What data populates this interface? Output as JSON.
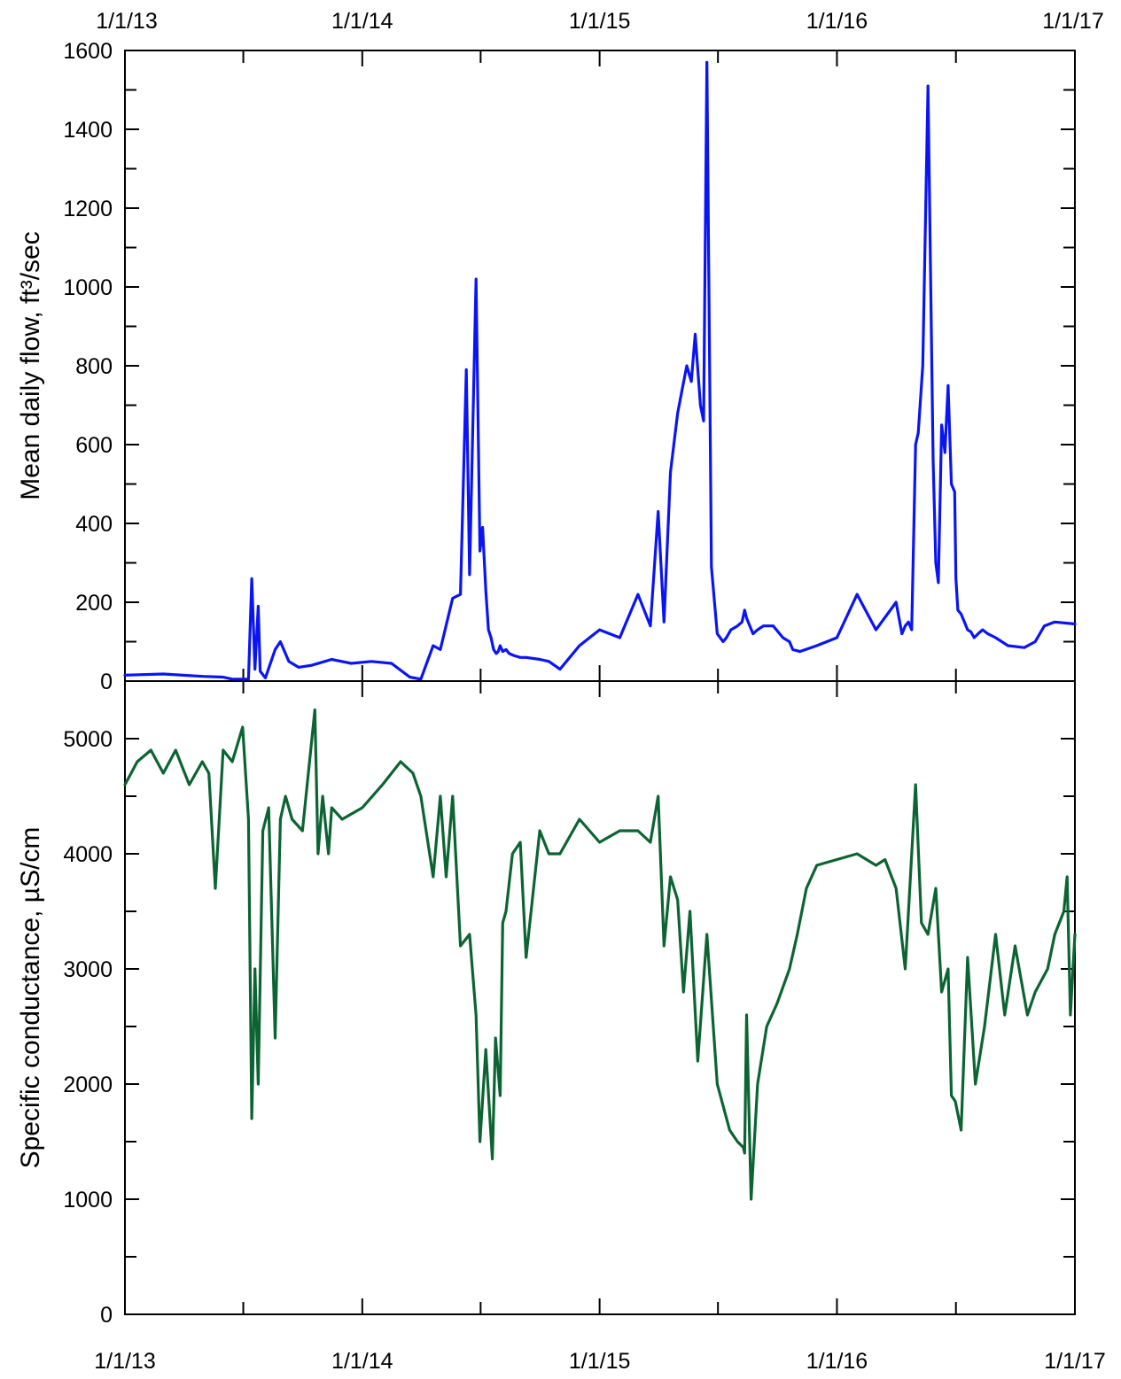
{
  "chart_data": [
    {
      "type": "line",
      "title": "",
      "xlabel": "",
      "ylabel": "Mean daily flow, ft³/sec",
      "ylim": [
        0,
        1600
      ],
      "y_ticks": [
        "0",
        "200",
        "400",
        "600",
        "800",
        "1000",
        "1200",
        "1400",
        "1600"
      ],
      "x_ticks_top": [
        "1/1/13",
        "1/1/14",
        "1/1/15",
        "1/1/16",
        "1/1/17"
      ],
      "xlim": [
        "2013-01-01",
        "2017-01-01"
      ],
      "grid": false,
      "color": "#0a14f5",
      "x": [
        "2013-01-01",
        "2013-03-01",
        "2013-05-01",
        "2013-06-01",
        "2013-06-15",
        "2013-07-10",
        "2013-07-15",
        "2013-07-20",
        "2013-07-25",
        "2013-07-28",
        "2013-08-05",
        "2013-08-20",
        "2013-08-28",
        "2013-09-10",
        "2013-09-15",
        "2013-09-25",
        "2013-10-15",
        "2013-11-15",
        "2013-12-15",
        "2014-01-15",
        "2014-02-15",
        "2014-03-15",
        "2014-04-01",
        "2014-04-20",
        "2014-05-01",
        "2014-05-20",
        "2014-06-01",
        "2014-06-10",
        "2014-06-15",
        "2014-06-25",
        "2014-07-01",
        "2014-07-05",
        "2014-07-10",
        "2014-07-14",
        "2014-07-18",
        "2014-07-22",
        "2014-07-26",
        "2014-07-29",
        "2014-08-01",
        "2014-08-05",
        "2014-08-10",
        "2014-08-15",
        "2014-08-22",
        "2014-09-01",
        "2014-09-10",
        "2014-10-01",
        "2014-10-15",
        "2014-11-01",
        "2014-12-01",
        "2015-01-01",
        "2015-02-01",
        "2015-03-01",
        "2015-03-20",
        "2015-04-01",
        "2015-04-10",
        "2015-04-20",
        "2015-05-01",
        "2015-05-08",
        "2015-05-15",
        "2015-05-22",
        "2015-05-28",
        "2015-06-05",
        "2015-06-10",
        "2015-06-15",
        "2015-06-22",
        "2015-07-01",
        "2015-07-10",
        "2015-07-15",
        "2015-07-22",
        "2015-08-01",
        "2015-08-08",
        "2015-08-12",
        "2015-08-15",
        "2015-08-20",
        "2015-08-25",
        "2015-09-01",
        "2015-09-10",
        "2015-09-25",
        "2015-10-10",
        "2015-10-20",
        "2015-10-25",
        "2015-11-05",
        "2015-12-01",
        "2016-01-01",
        "2016-02-01",
        "2016-03-01",
        "2016-04-01",
        "2016-04-10",
        "2016-04-15",
        "2016-04-20",
        "2016-04-25",
        "2016-05-01",
        "2016-05-05",
        "2016-05-12",
        "2016-05-20",
        "2016-05-28",
        "2016-06-01",
        "2016-06-05",
        "2016-06-10",
        "2016-06-15",
        "2016-06-20",
        "2016-06-25",
        "2016-06-30",
        "2016-07-02",
        "2016-07-05",
        "2016-07-10",
        "2016-07-15",
        "2016-07-20",
        "2016-07-25",
        "2016-07-30",
        "2016-08-05",
        "2016-08-12",
        "2016-08-20",
        "2016-09-01",
        "2016-09-20",
        "2016-10-15",
        "2016-11-01",
        "2016-11-15",
        "2016-12-01",
        "2017-01-01"
      ],
      "y": [
        15,
        18,
        12,
        10,
        5,
        5,
        260,
        30,
        190,
        25,
        8,
        80,
        100,
        50,
        45,
        35,
        40,
        55,
        45,
        50,
        45,
        10,
        5,
        90,
        80,
        210,
        220,
        790,
        270,
        1020,
        330,
        390,
        230,
        130,
        110,
        80,
        70,
        75,
        90,
        75,
        80,
        70,
        65,
        60,
        60,
        55,
        50,
        30,
        90,
        130,
        110,
        220,
        140,
        430,
        150,
        530,
        680,
        740,
        800,
        760,
        880,
        700,
        660,
        1570,
        290,
        120,
        100,
        110,
        130,
        140,
        150,
        180,
        160,
        140,
        120,
        130,
        140,
        140,
        110,
        100,
        80,
        75,
        90,
        110,
        220,
        130,
        200,
        120,
        140,
        150,
        130,
        600,
        630,
        800,
        1510,
        560,
        300,
        250,
        650,
        580,
        750,
        500,
        480,
        260,
        180,
        170,
        150,
        130,
        125,
        110,
        120,
        130,
        120,
        110,
        90,
        85,
        100,
        140,
        150,
        145
      ]
    },
    {
      "type": "line",
      "title": "",
      "xlabel": "",
      "ylabel": "Specific conductance, µS/cm",
      "ylim": [
        0,
        5500
      ],
      "y_ticks": [
        "0",
        "1000",
        "2000",
        "3000",
        "4000",
        "5000"
      ],
      "x_ticks_bottom": [
        "1/1/13",
        "1/1/14",
        "1/1/15",
        "1/1/16",
        "1/1/17"
      ],
      "xlim": [
        "2013-01-01",
        "2017-01-01"
      ],
      "grid": false,
      "color": "#0b6432",
      "x": [
        "2013-01-01",
        "2013-01-20",
        "2013-02-10",
        "2013-03-01",
        "2013-03-20",
        "2013-04-10",
        "2013-04-30",
        "2013-05-10",
        "2013-05-20",
        "2013-06-01",
        "2013-06-15",
        "2013-07-01",
        "2013-07-10",
        "2013-07-15",
        "2013-07-20",
        "2013-07-25",
        "2013-08-01",
        "2013-08-10",
        "2013-08-20",
        "2013-08-28",
        "2013-09-05",
        "2013-09-15",
        "2013-10-01",
        "2013-10-20",
        "2013-10-25",
        "2013-11-01",
        "2013-11-10",
        "2013-11-15",
        "2013-12-01",
        "2014-01-01",
        "2014-02-01",
        "2014-03-01",
        "2014-03-20",
        "2014-04-01",
        "2014-04-20",
        "2014-05-01",
        "2014-05-10",
        "2014-05-20",
        "2014-06-01",
        "2014-06-15",
        "2014-06-25",
        "2014-07-01",
        "2014-07-10",
        "2014-07-20",
        "2014-07-25",
        "2014-08-01",
        "2014-08-05",
        "2014-08-10",
        "2014-08-20",
        "2014-09-01",
        "2014-09-10",
        "2014-10-01",
        "2014-10-15",
        "2014-11-01",
        "2014-12-01",
        "2015-01-01",
        "2015-02-01",
        "2015-03-01",
        "2015-03-20",
        "2015-04-01",
        "2015-04-10",
        "2015-04-20",
        "2015-05-01",
        "2015-05-10",
        "2015-05-20",
        "2015-06-01",
        "2015-06-15",
        "2015-07-01",
        "2015-07-20",
        "2015-08-01",
        "2015-08-10",
        "2015-08-12",
        "2015-08-15",
        "2015-08-22",
        "2015-09-01",
        "2015-09-15",
        "2015-10-01",
        "2015-10-20",
        "2015-11-01",
        "2015-11-15",
        "2015-12-01",
        "2016-01-01",
        "2016-02-01",
        "2016-03-01",
        "2016-03-15",
        "2016-04-01",
        "2016-04-15",
        "2016-04-20",
        "2016-05-01",
        "2016-05-10",
        "2016-05-20",
        "2016-06-01",
        "2016-06-10",
        "2016-06-20",
        "2016-06-25",
        "2016-07-01",
        "2016-07-10",
        "2016-07-20",
        "2016-08-01",
        "2016-08-15",
        "2016-09-01",
        "2016-09-15",
        "2016-10-01",
        "2016-10-20",
        "2016-11-01",
        "2016-11-20",
        "2016-12-01",
        "2016-12-15",
        "2016-12-20",
        "2016-12-25",
        "2017-01-01"
      ],
      "y": [
        4600,
        4800,
        4900,
        4700,
        4900,
        4600,
        4800,
        4700,
        3700,
        4900,
        4800,
        5100,
        4300,
        1700,
        3000,
        2000,
        4200,
        4400,
        2400,
        4300,
        4500,
        4300,
        4200,
        5250,
        4000,
        4500,
        4000,
        4400,
        4300,
        4400,
        4600,
        4800,
        4700,
        4500,
        3800,
        4500,
        3800,
        4500,
        3200,
        3300,
        2600,
        1500,
        2300,
        1350,
        2400,
        1900,
        3400,
        3500,
        4000,
        4100,
        3100,
        4200,
        4000,
        4000,
        4300,
        4100,
        4200,
        4200,
        4100,
        4500,
        3200,
        3800,
        3600,
        2800,
        3500,
        2200,
        3300,
        2000,
        1600,
        1500,
        1450,
        1400,
        2600,
        1000,
        2000,
        2500,
        2700,
        3000,
        3300,
        3700,
        3900,
        3950,
        4000,
        3900,
        3950,
        3700,
        3000,
        3500,
        4600,
        3400,
        3300,
        3700,
        2800,
        3000,
        1900,
        1850,
        1600,
        3100,
        2000,
        2500,
        3300,
        2600,
        3200,
        2600,
        2800,
        3000,
        3300,
        3500,
        3800,
        2600,
        3300
      ]
    }
  ]
}
